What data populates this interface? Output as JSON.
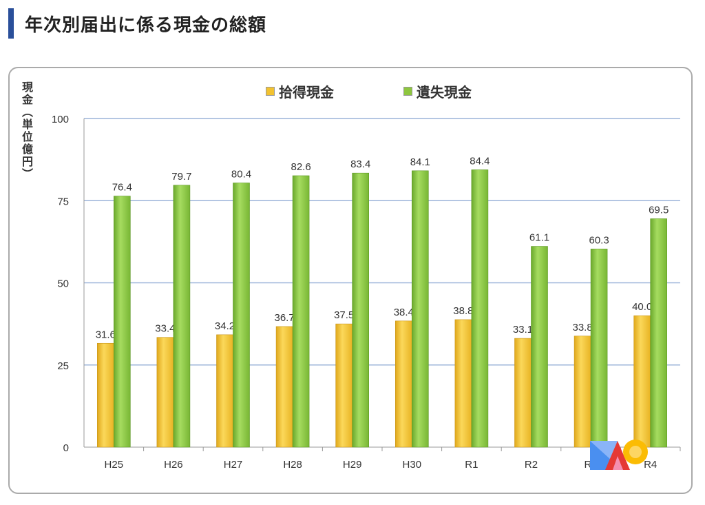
{
  "page": {
    "title": "年次別届出に係る現金の総額",
    "accent": "#2a4f9a"
  },
  "chart_data": {
    "type": "bar",
    "title": "",
    "ylabel": "現金（単位億円）",
    "xlabel": "",
    "categories": [
      "H25",
      "H26",
      "H27",
      "H28",
      "H29",
      "H30",
      "R1",
      "R2",
      "R3",
      "R4"
    ],
    "series": [
      {
        "name": "拾得現金",
        "color": "#f2c230",
        "values": [
          31.6,
          33.4,
          34.2,
          36.7,
          37.5,
          38.4,
          38.8,
          33.1,
          33.8,
          40.0
        ]
      },
      {
        "name": "遺失現金",
        "color": "#8ec63f",
        "values": [
          76.4,
          79.7,
          80.4,
          82.6,
          83.4,
          84.1,
          84.4,
          61.1,
          60.3,
          69.5
        ]
      }
    ],
    "ylim": [
      0,
      100
    ],
    "yticks": [
      0,
      25,
      50,
      75,
      100
    ],
    "grid": true,
    "legend": "top-center"
  }
}
